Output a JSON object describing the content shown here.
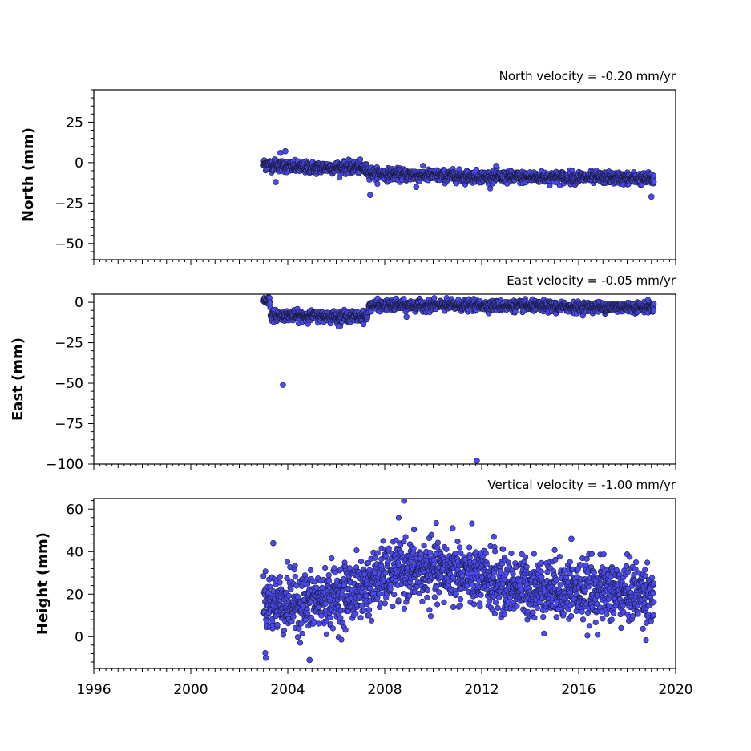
{
  "chart_data": [
    {
      "type": "scatter",
      "title": "North velocity = -0.20 mm/yr",
      "ylabel": "North (mm)",
      "xlim": [
        1996,
        2020
      ],
      "ylim": [
        -60,
        45
      ],
      "yticks": [
        25,
        0,
        -25,
        -50
      ],
      "yticklabels": [
        "25",
        "0",
        "−25",
        "−50"
      ],
      "show_xticklabels": false,
      "marker_color": "#4a4af0",
      "trend_points": [
        [
          2003.0,
          -1
        ],
        [
          2004.5,
          -3
        ],
        [
          2007.0,
          -3
        ],
        [
          2007.6,
          -7
        ],
        [
          2010.0,
          -8
        ],
        [
          2013.0,
          -9
        ],
        [
          2016.0,
          -9
        ],
        [
          2019.1,
          -10
        ]
      ],
      "noise": 1.8,
      "outliers": [
        [
          2003.7,
          6
        ],
        [
          2003.9,
          7
        ],
        [
          2003.5,
          -12
        ],
        [
          2007.4,
          -20
        ],
        [
          2012.6,
          -2
        ],
        [
          2019.0,
          -21
        ],
        [
          2009.3,
          -15
        ]
      ]
    },
    {
      "type": "scatter",
      "title": "East velocity = -0.05 mm/yr",
      "ylabel": "East (mm)",
      "xlim": [
        1996,
        2020
      ],
      "ylim": [
        -100,
        5
      ],
      "yticks": [
        0,
        -25,
        -50,
        -75,
        -100
      ],
      "yticklabels": [
        "0",
        "−25",
        "−50",
        "−75",
        "−100"
      ],
      "show_xticklabels": false,
      "marker_color": "#4a4af0",
      "trend_points": [
        [
          2003.0,
          1
        ],
        [
          2003.25,
          1
        ],
        [
          2003.3,
          -8
        ],
        [
          2007.3,
          -9
        ],
        [
          2007.35,
          -2
        ],
        [
          2012.0,
          -2
        ],
        [
          2016.0,
          -3
        ],
        [
          2019.1,
          -3
        ]
      ],
      "noise": 1.6,
      "outliers": [
        [
          2003.8,
          -51
        ],
        [
          2011.8,
          -98
        ],
        [
          2006.1,
          -15
        ],
        [
          2008.9,
          -9
        ]
      ]
    },
    {
      "type": "scatter",
      "title": "Vertical velocity = -1.00 mm/yr",
      "ylabel": "Height (mm)",
      "xlim": [
        1996,
        2020
      ],
      "ylim": [
        -15,
        65
      ],
      "yticks": [
        60,
        40,
        20,
        0
      ],
      "yticklabels": [
        "60",
        "40",
        "20",
        "0"
      ],
      "show_xticklabels": true,
      "xticks": [
        1996,
        2000,
        2004,
        2008,
        2012,
        2016,
        2020
      ],
      "xticklabels": [
        "1996",
        "2000",
        "2004",
        "2008",
        "2012",
        "2016",
        "2020"
      ],
      "marker_color": "#4a4af0",
      "trend_points": [
        [
          2003.0,
          16
        ],
        [
          2005.0,
          16
        ],
        [
          2007.0,
          22
        ],
        [
          2008.5,
          31
        ],
        [
          2011.0,
          30
        ],
        [
          2013.0,
          24
        ],
        [
          2016.0,
          22
        ],
        [
          2019.1,
          20
        ]
      ],
      "noise": 7,
      "outliers": [
        [
          2008.8,
          64
        ],
        [
          2004.9,
          -11
        ],
        [
          2003.1,
          -10
        ],
        [
          2003.4,
          44
        ],
        [
          2010.8,
          51
        ],
        [
          2015.7,
          46
        ],
        [
          2012.5,
          47
        ]
      ]
    }
  ]
}
